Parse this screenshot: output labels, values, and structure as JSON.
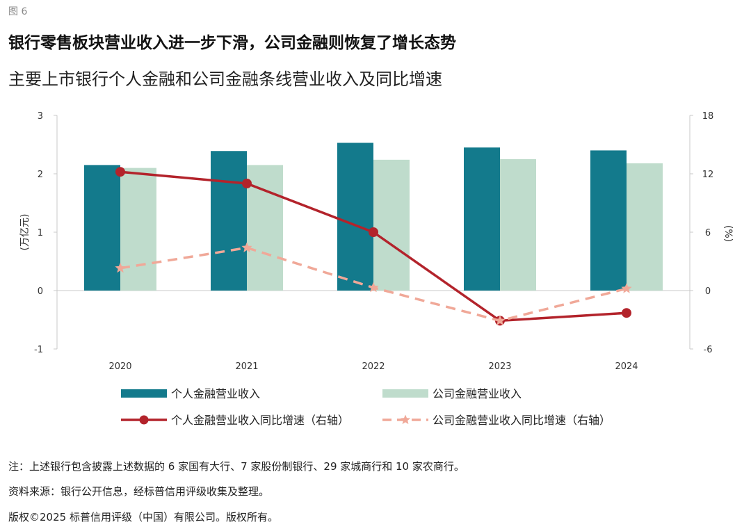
{
  "figure_label": "图 6",
  "title": "银行零售板块营业收入进一步下滑，公司金融则恢复了增长态势",
  "subtitle": "主要上市银行个人金融和公司金融条线营业收入及同比增速",
  "colors": {
    "personal_bar": "#137a8c",
    "corporate_bar": "#bfdccc",
    "personal_line": "#b3232b",
    "corporate_line": "#f0a898"
  },
  "chart_data": {
    "type": "bar",
    "categories": [
      "2020",
      "2021",
      "2022",
      "2023",
      "2024"
    ],
    "series": [
      {
        "name": "个人金融营业收入",
        "type": "bar",
        "axis": "left",
        "values": [
          2.15,
          2.39,
          2.53,
          2.45,
          2.4
        ]
      },
      {
        "name": "公司金融营业收入",
        "type": "bar",
        "axis": "left",
        "values": [
          2.1,
          2.15,
          2.24,
          2.25,
          2.18
        ]
      },
      {
        "name": "个人金融营业收入同比增速（右轴）",
        "type": "line",
        "marker": "circle",
        "axis": "right",
        "values": [
          12.2,
          11.0,
          6.0,
          -3.1,
          -2.3
        ]
      },
      {
        "name": "公司金融营业收入同比增速（右轴）",
        "type": "line",
        "marker": "star",
        "dashed": true,
        "axis": "right",
        "values": [
          2.3,
          4.4,
          0.3,
          -3.1,
          0.2
        ]
      }
    ],
    "ylabel": "(万亿元)",
    "y2label": "(%)",
    "ylim": [
      -1,
      3
    ],
    "y2lim": [
      -6,
      18
    ],
    "yticks": [
      "3",
      "2",
      "1",
      "0",
      "-1"
    ],
    "y2ticks": [
      "18",
      "12",
      "6",
      "0",
      "-6"
    ],
    "grid": false,
    "legend": "bottom"
  },
  "notes": {
    "note": "注：上述银行包含披露上述数据的 6 家国有大行、7 家股份制银行、29 家城商行和 10 家农商行。",
    "source": "资料来源：银行公开信息，经标普信用评级收集及整理。",
    "copyright": "版权©2025 标普信用评级（中国）有限公司。版权所有。"
  }
}
